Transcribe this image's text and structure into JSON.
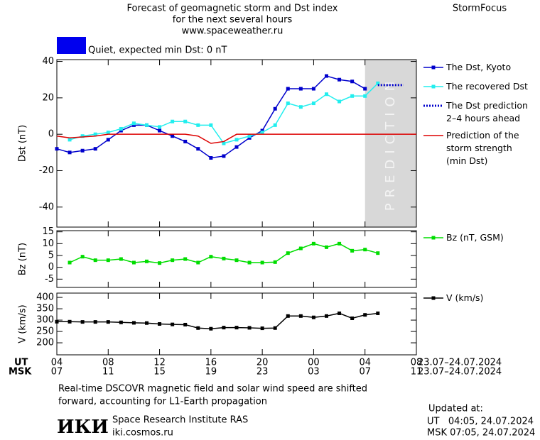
{
  "header": {
    "title_lines": [
      "Forecast of geomagnetic storm and Dst index",
      "for the next several hours",
      "www.spaceweather.ru"
    ],
    "brand": "StormFocus",
    "status": "Quiet, expected min Dst: 0 nT",
    "status_color": "#0000ee"
  },
  "x_axis": {
    "xlim": [
      0,
      28
    ],
    "ut_label": "UT",
    "msk_label": "MSK",
    "xticks": [
      {
        "value": 0,
        "label": "04"
      },
      {
        "value": 4,
        "label": "08"
      },
      {
        "value": 8,
        "label": "12"
      },
      {
        "value": 12,
        "label": "16"
      },
      {
        "value": 16,
        "label": "20"
      },
      {
        "value": 20,
        "label": "00"
      },
      {
        "value": 24,
        "label": "04"
      },
      {
        "value": 28,
        "label": "08"
      }
    ],
    "msk_ticks": [
      {
        "value": 0,
        "label": "07"
      },
      {
        "value": 4,
        "label": "11"
      },
      {
        "value": 8,
        "label": "15"
      },
      {
        "value": 12,
        "label": "19"
      },
      {
        "value": 16,
        "label": "23"
      },
      {
        "value": 20,
        "label": "03"
      },
      {
        "value": 24,
        "label": "07"
      },
      {
        "value": 28,
        "label": "11"
      }
    ],
    "date_range_ut": "23.07–24.07.2024",
    "date_range_msk": "23.07–24.07.2024"
  },
  "chart_data": [
    {
      "type": "line",
      "ylabel": "Dst (nT)",
      "ylim": [
        -51,
        41
      ],
      "yticks": [
        40,
        20,
        0,
        -20,
        -40
      ],
      "prediction_region": {
        "xlim": [
          24,
          28
        ],
        "label": "PREDICTION"
      },
      "series": [
        {
          "name": "The Dst, Kyoto",
          "color": "#0000cc",
          "marker": true,
          "x": [
            0,
            1,
            2,
            3,
            4,
            5,
            6,
            7,
            8,
            9,
            10,
            11,
            12,
            13,
            14,
            15,
            16,
            17,
            18,
            19,
            20,
            21,
            22,
            23,
            24
          ],
          "values": [
            -8,
            -10,
            -9,
            -8,
            -3,
            2,
            5,
            5,
            2,
            -1,
            -4,
            -8,
            -13,
            -12,
            -7,
            -2,
            2,
            14,
            25,
            25,
            25,
            32,
            30,
            29,
            25
          ]
        },
        {
          "name": "The recovered Dst",
          "color": "#22eeee",
          "marker": true,
          "x": [
            1,
            2,
            3,
            4,
            5,
            6,
            7,
            8,
            9,
            10,
            11,
            12,
            13,
            14,
            15,
            16,
            17,
            18,
            19,
            20,
            21,
            22,
            23,
            24,
            25
          ],
          "values": [
            -3,
            -1,
            0,
            1,
            3,
            6,
            5,
            4,
            7,
            7,
            5,
            5,
            -5,
            -3,
            -1,
            1,
            5,
            17,
            15,
            17,
            22,
            18,
            21,
            21,
            28
          ]
        },
        {
          "name": "The Dst prediction\n2–4 hours ahead",
          "color": "#0000cc",
          "dash": true,
          "x": [
            25,
            27
          ],
          "values": [
            27,
            27
          ]
        },
        {
          "name": "Prediction of the\nstorm strength\n(min Dst)",
          "color": "#dd0000",
          "x": [
            0,
            1,
            2,
            3,
            4,
            10,
            11,
            12,
            13,
            14,
            28
          ],
          "values": [
            -1,
            -2,
            -1.5,
            -1,
            0,
            0,
            -1,
            -5,
            -4,
            0,
            0
          ]
        }
      ]
    },
    {
      "type": "line",
      "ylabel": "Bz (nT)",
      "ylim": [
        -8.5,
        15.5
      ],
      "yticks": [
        15,
        10,
        5,
        0,
        -5
      ],
      "series": [
        {
          "name": "Bz (nT, GSM)",
          "color": "#00dd00",
          "marker": true,
          "x": [
            1,
            2,
            3,
            4,
            5,
            6,
            7,
            8,
            9,
            10,
            11,
            12,
            13,
            14,
            15,
            16,
            17,
            18,
            19,
            20,
            21,
            22,
            23,
            24,
            25
          ],
          "values": [
            2,
            4.5,
            3,
            3,
            3.5,
            2,
            2.5,
            1.8,
            3,
            3.5,
            2,
            4.5,
            3.7,
            3,
            2,
            2,
            2.2,
            6,
            8,
            10,
            8.5,
            10,
            7,
            7.5,
            6
          ]
        }
      ]
    },
    {
      "type": "line",
      "ylabel": "V (km/s)",
      "ylim": [
        147,
        419
      ],
      "yticks": [
        400,
        350,
        300,
        250,
        200
      ],
      "series": [
        {
          "name": "V (km/s)",
          "color": "#000000",
          "marker": true,
          "x": [
            0,
            1,
            2,
            3,
            4,
            5,
            6,
            7,
            8,
            9,
            10,
            11,
            12,
            13,
            14,
            15,
            16,
            17,
            18,
            19,
            20,
            21,
            22,
            23,
            24,
            25
          ],
          "values": [
            293,
            293,
            292,
            292,
            292,
            290,
            288,
            287,
            283,
            281,
            280,
            265,
            262,
            267,
            267,
            266,
            264,
            265,
            318,
            318,
            312,
            318,
            330,
            308,
            323,
            330
          ]
        }
      ]
    }
  ],
  "footer": {
    "note_lines": [
      "Real-time DSCOVR magnetic field and solar wind speed are shifted",
      "forward, accounting for L1-Earth propagation"
    ],
    "logo": "ИКИ",
    "institute": "Space Research Institute RAS",
    "site": "iki.cosmos.ru",
    "updated_title": "Updated at:",
    "updated_ut": "UT   04:05, 24.07.2024",
    "updated_msk": "MSK 07:05, 24.07.2024"
  }
}
